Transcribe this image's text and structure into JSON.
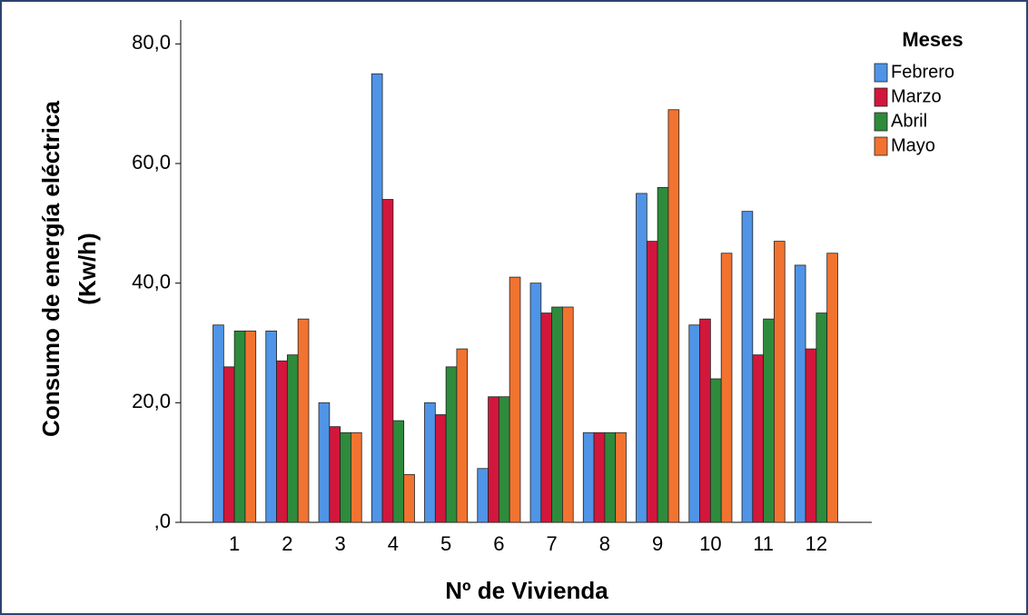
{
  "chart_data": {
    "type": "bar",
    "ylabel": [
      "Consumo de energía eléctrica",
      "(Kw/h)"
    ],
    "xlabel": "Nº de Vivienda",
    "legend_title": "Meses",
    "legend_position": "right",
    "categories": [
      "1",
      "2",
      "3",
      "4",
      "5",
      "6",
      "7",
      "8",
      "9",
      "10",
      "11",
      "12"
    ],
    "series": [
      {
        "name": "Febrero",
        "color": "#4f94e6",
        "values": [
          33,
          32,
          20,
          75,
          20,
          9,
          40,
          15,
          55,
          33,
          52,
          43
        ]
      },
      {
        "name": "Marzo",
        "color": "#d3163c",
        "values": [
          26,
          27,
          16,
          54,
          18,
          21,
          35,
          15,
          47,
          34,
          28,
          29
        ]
      },
      {
        "name": "Abril",
        "color": "#2e8b3b",
        "values": [
          32,
          28,
          15,
          17,
          26,
          21,
          36,
          15,
          56,
          24,
          34,
          35
        ]
      },
      {
        "name": "Mayo",
        "color": "#f27330",
        "values": [
          32,
          34,
          15,
          8,
          29,
          41,
          36,
          15,
          69,
          45,
          47,
          45
        ]
      }
    ],
    "ylim": [
      0,
      84
    ],
    "yticks": [
      {
        "value": 0,
        "label": ",0"
      },
      {
        "value": 20,
        "label": "20,0"
      },
      {
        "value": 40,
        "label": "40,0"
      },
      {
        "value": 60,
        "label": "60,0"
      },
      {
        "value": 80,
        "label": "80,0"
      }
    ],
    "grid": false
  }
}
